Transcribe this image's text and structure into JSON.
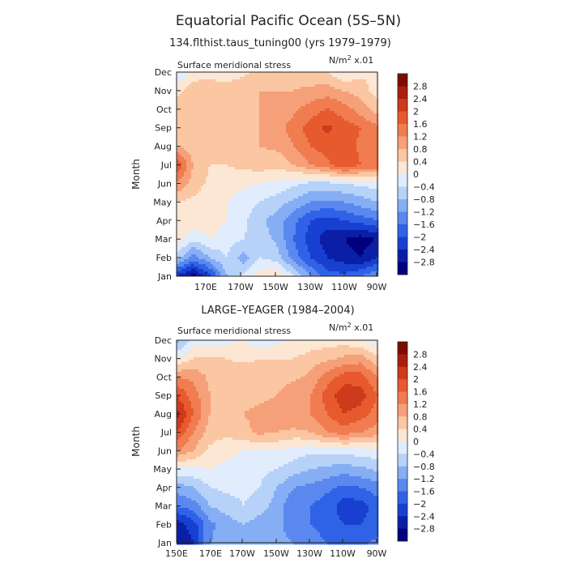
{
  "figure": {
    "title": "Equatorial Pacific Ocean (5S–5N)",
    "panel_titles": [
      "134.flthist.taus_tuning00 (yrs 1979–1979)",
      "LARGE–YEAGER (1984–2004)"
    ],
    "panel_subtitle": "Surface meridional stress",
    "units_prefix": "N/m",
    "units_exp": "2",
    "units_suffix": " x.01",
    "ylabel": "Month"
  },
  "colors": [
    "#00007f",
    "#0a1fa6",
    "#1740d1",
    "#2f62e6",
    "#5a88ee",
    "#86aef4",
    "#b7d2f9",
    "#e1ecfc",
    "#fce6d4",
    "#fbc6a2",
    "#f6a07a",
    "#f07c50",
    "#e75a2e",
    "#ce3a1a",
    "#a91f0d",
    "#7d0c03"
  ],
  "colorbar": {
    "levels": [
      "2.8",
      "2.4",
      "2",
      "1.6",
      "1.2",
      "0.8",
      "0.4",
      "0",
      "−0.4",
      "−0.8",
      "−1.2",
      "−1.6",
      "−2",
      "−2.4",
      "−2.8"
    ]
  },
  "chart_data": [
    {
      "type": "heatmap",
      "title": "134.flthist.taus_tuning00 (yrs 1979–1979)",
      "subtitle": "Surface meridional stress",
      "units": "N/m^2 x.01",
      "ylabel": "Month",
      "x": [
        "150E",
        "160E",
        "170E",
        "180",
        "170W",
        "160W",
        "150W",
        "140W",
        "130W",
        "120W",
        "110W",
        "100W",
        "90W"
      ],
      "y": [
        "Jan",
        "Feb",
        "Mar",
        "Apr",
        "May",
        "Jun",
        "Jul",
        "Aug",
        "Sep",
        "Oct",
        "Nov",
        "Dec"
      ],
      "xtick_labels": [
        "170E",
        "170W",
        "150W",
        "130W",
        "110W",
        "90W"
      ],
      "ytick_labels": [
        "Jan",
        "Feb",
        "Mar",
        "Apr",
        "May",
        "Jun",
        "Jul",
        "Aug",
        "Sep",
        "Oct",
        "Nov",
        "Dec"
      ],
      "z": [
        [
          -2.4,
          -3.0,
          -2.2,
          -0.8,
          -0.3,
          0.2,
          0.4,
          -0.4,
          -1.2,
          -1.8,
          -1.9,
          -1.6,
          -1.2
        ],
        [
          -0.6,
          -1.4,
          -0.8,
          -0.4,
          -1.0,
          -0.4,
          -0.6,
          -1.4,
          -2.0,
          -2.4,
          -2.6,
          -2.8,
          -2.4
        ],
        [
          0.2,
          -0.3,
          0.0,
          -0.2,
          -0.4,
          -0.6,
          -0.9,
          -1.6,
          -2.2,
          -2.6,
          -2.8,
          -3.0,
          -2.8
        ],
        [
          0.3,
          0.3,
          0.2,
          0.0,
          -0.3,
          -0.7,
          -1.0,
          -1.5,
          -2.0,
          -2.2,
          -2.0,
          -1.8,
          -1.6
        ],
        [
          0.4,
          0.3,
          0.2,
          0.0,
          -0.2,
          -0.4,
          -0.6,
          -0.9,
          -1.2,
          -1.3,
          -1.2,
          -1.0,
          -0.8
        ],
        [
          1.2,
          0.6,
          0.3,
          0.2,
          0.1,
          0.0,
          -0.1,
          -0.3,
          -0.5,
          -0.5,
          -0.4,
          -0.3,
          -0.2
        ],
        [
          2.0,
          0.8,
          0.4,
          0.4,
          0.5,
          0.6,
          0.5,
          0.8,
          1.2,
          1.5,
          2.0,
          1.6,
          1.5
        ],
        [
          0.8,
          0.5,
          0.6,
          0.7,
          0.8,
          0.8,
          0.9,
          1.2,
          1.6,
          1.8,
          1.9,
          1.5,
          1.2
        ],
        [
          0.4,
          0.5,
          0.6,
          0.7,
          0.7,
          0.8,
          1.0,
          1.4,
          1.8,
          2.1,
          1.8,
          1.6,
          1.3
        ],
        [
          0.6,
          0.6,
          0.6,
          0.7,
          0.7,
          0.8,
          0.9,
          1.1,
          1.4,
          1.6,
          1.4,
          1.0,
          0.6
        ],
        [
          0.3,
          0.6,
          0.7,
          0.7,
          0.8,
          0.8,
          0.8,
          0.8,
          0.9,
          1.0,
          0.8,
          0.6,
          0.2
        ],
        [
          -0.5,
          0.2,
          0.2,
          0.0,
          0.3,
          0.5,
          0.6,
          0.6,
          0.5,
          0.4,
          0.0,
          0.3,
          0.4
        ]
      ],
      "levels": [
        -2.8,
        -2.4,
        -2.0,
        -1.6,
        -1.2,
        -0.8,
        -0.4,
        0,
        0.4,
        0.8,
        1.2,
        1.6,
        2.0,
        2.4,
        2.8
      ]
    },
    {
      "type": "heatmap",
      "title": "LARGE–YEAGER (1984–2004)",
      "subtitle": "Surface meridional stress",
      "units": "N/m^2 x.01",
      "ylabel": "Month",
      "x": [
        "150E",
        "160E",
        "170E",
        "180",
        "170W",
        "160W",
        "150W",
        "140W",
        "130W",
        "120W",
        "110W",
        "100W",
        "90W"
      ],
      "y": [
        "Jan",
        "Feb",
        "Mar",
        "Apr",
        "May",
        "Jun",
        "Jul",
        "Aug",
        "Sep",
        "Oct",
        "Nov",
        "Dec"
      ],
      "xtick_labels": [
        "150E",
        "170E",
        "170W",
        "150W",
        "130W",
        "110W",
        "90W"
      ],
      "ytick_labels": [
        "Jan",
        "Feb",
        "Mar",
        "Apr",
        "May",
        "Jun",
        "Jul",
        "Aug",
        "Sep",
        "Oct",
        "Nov",
        "Dec"
      ],
      "z": [
        [
          -2.8,
          -2.4,
          -1.2,
          -1.0,
          -0.8,
          -1.0,
          -1.1,
          -1.2,
          -1.4,
          -1.6,
          -1.8,
          -1.7,
          -1.5
        ],
        [
          -2.6,
          -2.2,
          -1.3,
          -1.0,
          -0.8,
          -1.0,
          -1.1,
          -1.4,
          -1.6,
          -1.8,
          -2.0,
          -2.0,
          -1.8
        ],
        [
          -1.6,
          -1.4,
          -0.8,
          -0.6,
          -0.4,
          -0.6,
          -1.0,
          -1.5,
          -1.6,
          -1.8,
          -2.2,
          -2.2,
          -1.8
        ],
        [
          -1.0,
          -0.8,
          -0.4,
          -0.3,
          -0.3,
          -0.4,
          -0.8,
          -1.2,
          -1.3,
          -1.5,
          -1.7,
          -1.6,
          -1.4
        ],
        [
          -0.1,
          -0.1,
          0.0,
          -0.1,
          -0.2,
          -0.3,
          -0.4,
          -0.6,
          -0.8,
          -0.9,
          -1.0,
          -0.9,
          -0.7
        ],
        [
          1.2,
          0.8,
          0.3,
          0.1,
          0.0,
          0.0,
          0.0,
          -0.2,
          -0.3,
          -0.3,
          -0.2,
          -0.2,
          -0.1
        ],
        [
          2.0,
          1.2,
          0.6,
          0.5,
          0.7,
          0.9,
          0.8,
          0.7,
          0.8,
          1.2,
          1.4,
          1.2,
          1.0
        ],
        [
          2.6,
          1.6,
          0.8,
          0.6,
          0.8,
          0.9,
          1.0,
          1.2,
          1.2,
          1.6,
          2.0,
          1.8,
          1.4
        ],
        [
          2.0,
          1.4,
          0.8,
          0.6,
          0.7,
          0.7,
          0.8,
          1.1,
          1.2,
          1.8,
          2.3,
          2.2,
          1.6
        ],
        [
          1.2,
          1.1,
          0.7,
          0.6,
          0.7,
          0.6,
          0.6,
          0.7,
          0.9,
          1.4,
          1.8,
          1.8,
          1.2
        ],
        [
          0.0,
          0.4,
          0.5,
          0.4,
          0.3,
          0.4,
          0.4,
          0.4,
          0.6,
          0.7,
          0.9,
          1.0,
          0.5
        ],
        [
          -1.0,
          -0.2,
          -0.2,
          -0.1,
          0.0,
          -0.3,
          -0.1,
          0.0,
          0.1,
          0.2,
          0.2,
          0.0,
          -0.2
        ]
      ],
      "levels": [
        -2.8,
        -2.4,
        -2.0,
        -1.6,
        -1.2,
        -0.8,
        -0.4,
        0,
        0.4,
        0.8,
        1.2,
        1.6,
        2.0,
        2.4,
        2.8
      ]
    }
  ]
}
